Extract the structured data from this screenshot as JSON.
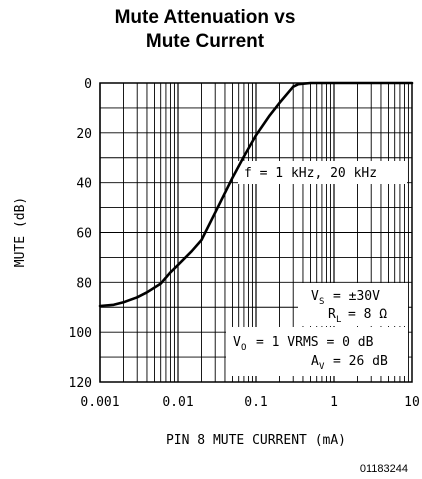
{
  "chart_data": {
    "type": "line",
    "title_line1": "Mute Attenuation vs",
    "title_line2": "Mute Current",
    "xlabel": "PIN 8 MUTE CURRENT (mA)",
    "ylabel": "MUTE (dB)",
    "xscale": "log",
    "xlim": [
      0.001,
      10
    ],
    "ylim": [
      0,
      120
    ],
    "y_inverted": true,
    "grid": true,
    "x_ticks": [
      0.001,
      0.01,
      0.1,
      1,
      10
    ],
    "x_tick_labels": [
      "0.001",
      "0.01",
      "0.1",
      "1",
      "10"
    ],
    "y_ticks": [
      0,
      20,
      40,
      60,
      80,
      100,
      120
    ],
    "y_tick_labels": [
      "0",
      "20",
      "40",
      "60",
      "80",
      "100",
      "120"
    ],
    "series": [
      {
        "x": [
          0.001,
          0.0015,
          0.002,
          0.003,
          0.004,
          0.006,
          0.008,
          0.01,
          0.015,
          0.02,
          0.03,
          0.05,
          0.07,
          0.1,
          0.15,
          0.2,
          0.3,
          0.35,
          0.5,
          1,
          2,
          5,
          10
        ],
        "y": [
          89.5,
          89,
          88,
          86,
          84,
          80.5,
          76,
          73,
          67.5,
          63,
          52,
          38,
          29.5,
          21,
          13,
          8,
          1.5,
          0.5,
          0,
          0,
          0,
          0,
          0
        ]
      }
    ],
    "annotations": {
      "freq": "f = 1 kHz, 20 kHz",
      "vs_main": "V",
      "vs_sub": "S",
      "vs_val": "= ±30V",
      "rl_main": "R",
      "rl_sub": "L",
      "rl_val": "= 8 Ω",
      "vo_main": "V",
      "vo_sub": "O",
      "vo_val": "= 1 VRMS = 0 dB",
      "av_main": "A",
      "av_sub": "V",
      "av_val": "= 26 dB"
    },
    "figure_id": "01183244"
  }
}
